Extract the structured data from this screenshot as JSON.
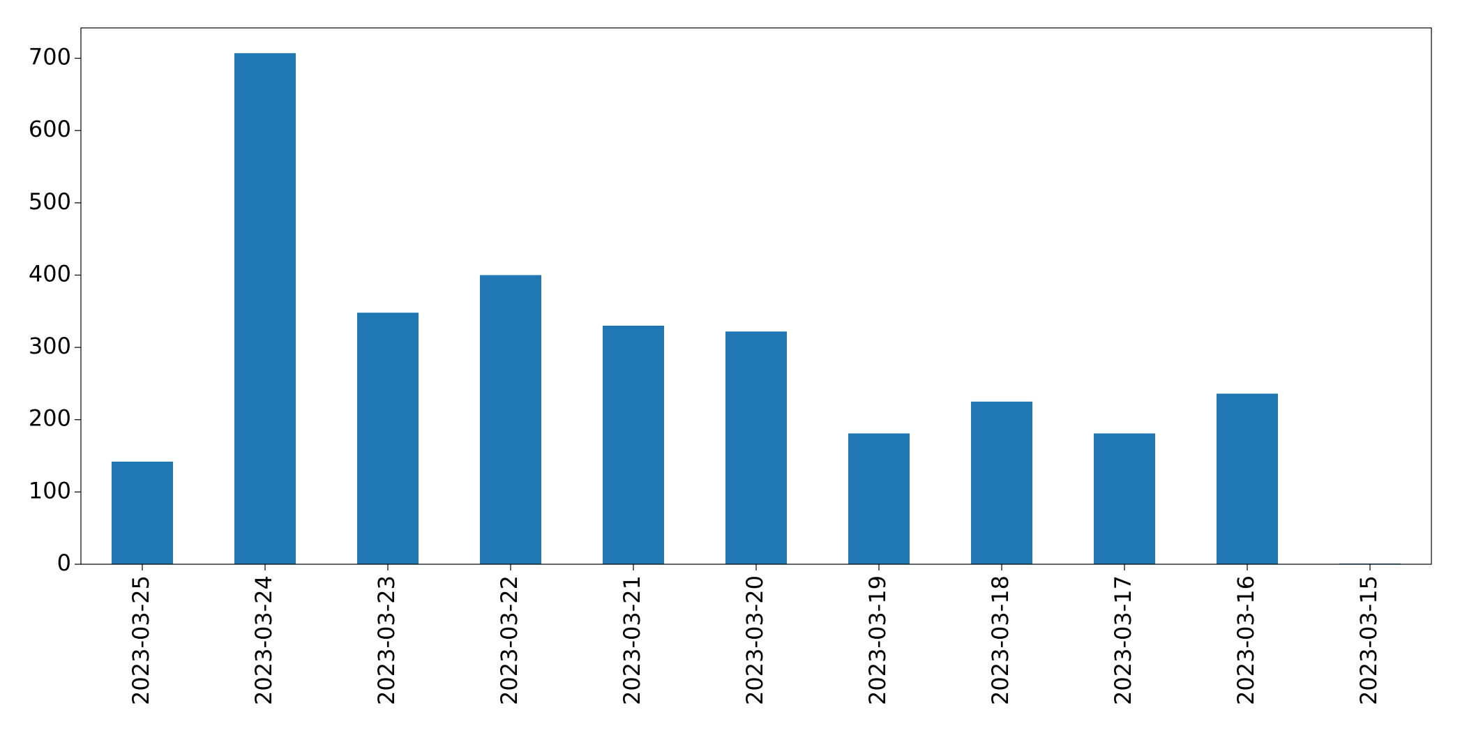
{
  "chart_data": {
    "type": "bar",
    "categories": [
      "2023-03-25",
      "2023-03-24",
      "2023-03-23",
      "2023-03-22",
      "2023-03-21",
      "2023-03-20",
      "2023-03-19",
      "2023-03-18",
      "2023-03-17",
      "2023-03-16",
      "2023-03-15"
    ],
    "values": [
      142,
      707,
      348,
      400,
      330,
      322,
      181,
      225,
      181,
      236,
      1
    ],
    "color": "#1f77b4",
    "ylim": [
      0,
      742
    ],
    "yticks": [
      0,
      100,
      200,
      300,
      400,
      500,
      600,
      700
    ],
    "grid": false
  }
}
